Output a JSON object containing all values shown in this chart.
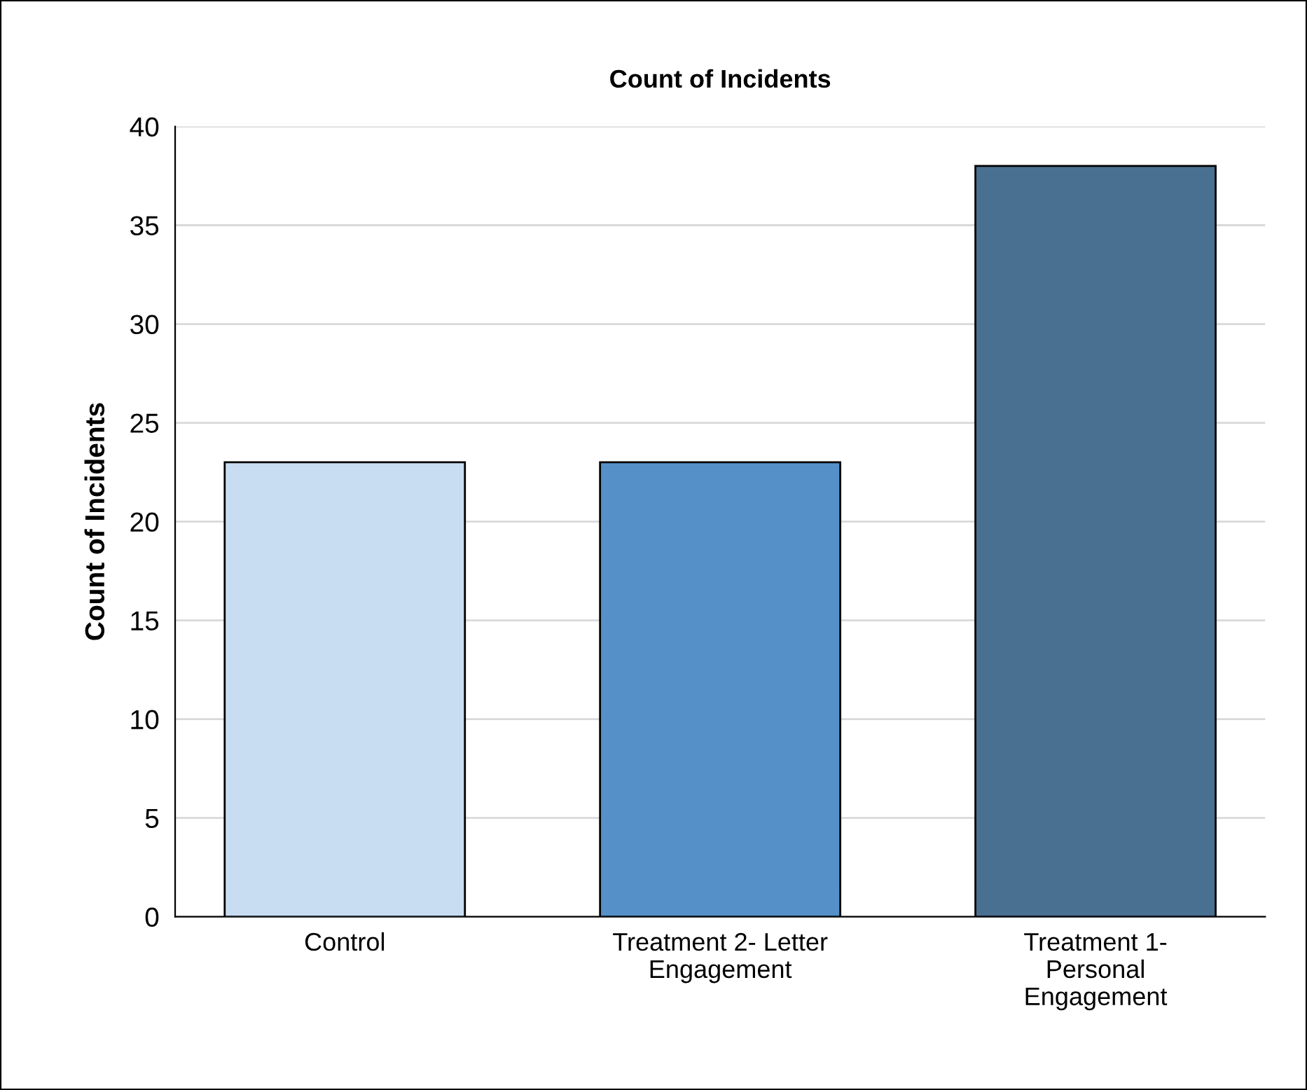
{
  "chart_data": {
    "type": "bar",
    "title": "Count of Incidents",
    "ylabel": "Count of Incidents",
    "categories": [
      "Control",
      "Treatment 2- Letter\nEngagement",
      "Treatment 1-\nPersonal\nEngagement"
    ],
    "values": [
      23,
      23,
      38
    ],
    "colors": [
      "#c9ddf2",
      "#5591c8",
      "#4a7091"
    ],
    "ylim": [
      0,
      40
    ],
    "yticks": [
      0,
      5,
      10,
      15,
      20,
      25,
      30,
      35,
      40
    ],
    "grid": "y"
  }
}
